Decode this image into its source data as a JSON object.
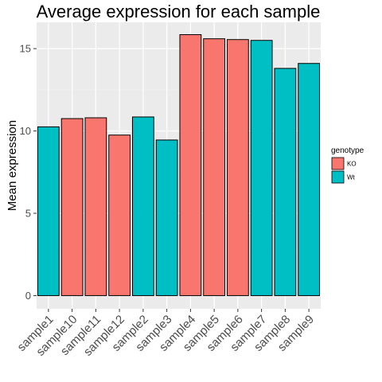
{
  "chart_data": {
    "type": "bar",
    "title": "Average expression for each sample",
    "xlabel": "",
    "ylabel": "Mean expression",
    "categories": [
      "sample1",
      "sample10",
      "sample11",
      "sample12",
      "sample2",
      "sample3",
      "sample4",
      "sample5",
      "sample6",
      "sample7",
      "sample8",
      "sample9"
    ],
    "values": [
      10.25,
      10.75,
      10.8,
      9.75,
      10.85,
      9.45,
      15.85,
      15.6,
      15.55,
      15.5,
      13.8,
      14.1
    ],
    "groups": [
      "Wt",
      "KO",
      "KO",
      "KO",
      "Wt",
      "Wt",
      "KO",
      "KO",
      "KO",
      "Wt",
      "Wt",
      "Wt"
    ],
    "ylim": [
      -0.8,
      16.6
    ],
    "yticks": [
      0,
      5,
      10,
      15
    ],
    "grid": true,
    "legend": {
      "title": "genotype",
      "position": "right",
      "entries": [
        {
          "label": "KO",
          "color": "#F8766D"
        },
        {
          "label": "Wt",
          "color": "#00BFC4"
        }
      ]
    },
    "colors": {
      "KO": "#F8766D",
      "Wt": "#00BFC4",
      "panel_background": "#EBEBEB",
      "grid_major": "#FFFFFF",
      "grid_minor": "#F2F2F2",
      "bar_outline": "#000000"
    }
  }
}
